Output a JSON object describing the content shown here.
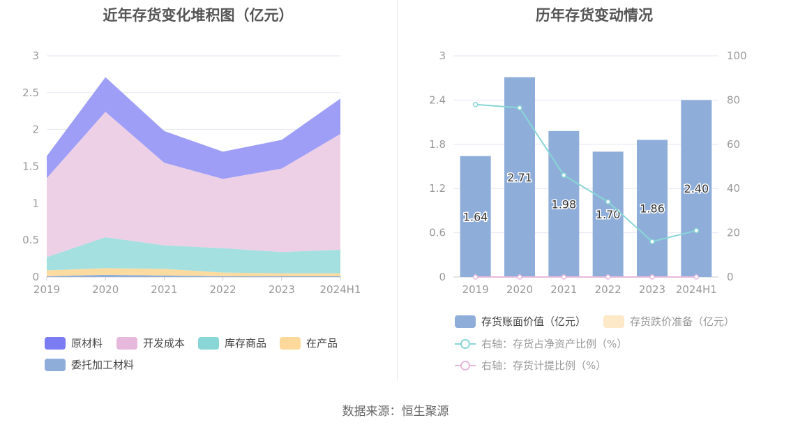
{
  "footer": {
    "source_label": "数据来源：恒生聚源"
  },
  "chart_data": [
    {
      "type": "area",
      "stacked": true,
      "title": "近年存货变化堆积图（亿元）",
      "x": [
        "2019",
        "2020",
        "2021",
        "2022",
        "2023",
        "2024H1"
      ],
      "ylim": [
        0,
        3
      ],
      "yticks": [
        0,
        0.5,
        1,
        1.5,
        2,
        2.5,
        3
      ],
      "ytick_labels": [
        "0",
        "0.5",
        "1",
        "1.5",
        "2",
        "2.5",
        "3"
      ],
      "grid": true,
      "legend_position": "bottom",
      "series": [
        {
          "name": "委托加工材料",
          "color": "#8eaed9",
          "values": [
            0.01,
            0.03,
            0.02,
            0.01,
            0.01,
            0.01
          ]
        },
        {
          "name": "在产品",
          "color": "#fcdba0",
          "values": [
            0.08,
            0.09,
            0.09,
            0.05,
            0.04,
            0.04
          ]
        },
        {
          "name": "库存商品",
          "color": "#a5e0e0",
          "values": [
            0.18,
            0.42,
            0.32,
            0.33,
            0.29,
            0.32
          ]
        },
        {
          "name": "开发成本",
          "color": "#edd0e6",
          "values": [
            1.07,
            1.7,
            1.12,
            0.94,
            1.13,
            1.57
          ]
        },
        {
          "name": "原材料",
          "color": "#9e9ef7",
          "values": [
            0.3,
            0.47,
            0.43,
            0.37,
            0.39,
            0.48
          ]
        }
      ],
      "legend_order": [
        {
          "name": "原材料",
          "color": "#7b7bf2"
        },
        {
          "name": "开发成本",
          "color": "#e6b9dc"
        },
        {
          "name": "库存商品",
          "color": "#88d6d6"
        },
        {
          "name": "在产品",
          "color": "#fcd89a"
        },
        {
          "name": "委托加工材料",
          "color": "#8eaed9"
        }
      ]
    },
    {
      "type": "bar",
      "title": "历年存货变动情况",
      "categories": [
        "2019",
        "2020",
        "2021",
        "2022",
        "2023",
        "2024H1"
      ],
      "ylim_left": [
        0,
        3
      ],
      "yticks_left": [
        "0",
        "0.6",
        "1.2",
        "1.8",
        "2.4",
        "3"
      ],
      "ylim_right": [
        0,
        100
      ],
      "yticks_right": [
        "0",
        "20",
        "40",
        "60",
        "80",
        "100"
      ],
      "grid": true,
      "legend_position": "bottom",
      "series": [
        {
          "name": "存货账面价值（亿元）",
          "type": "bar",
          "axis": "left",
          "color": "#8eaed9",
          "values": [
            1.64,
            2.71,
            1.98,
            1.7,
            1.86,
            2.4
          ],
          "labels": [
            "1.64",
            "2.71",
            "1.98",
            "1.70",
            "1.86",
            "2.40"
          ]
        },
        {
          "name": "存货跌价准备（亿元）",
          "type": "bar",
          "axis": "left",
          "color": "#fde8c8",
          "values": [
            0,
            0,
            0,
            0,
            0,
            0
          ]
        },
        {
          "name": "右轴：存货占净资产比例（%）",
          "type": "line",
          "axis": "right",
          "color": "#88d6d6",
          "values": [
            78,
            76.5,
            46,
            34,
            16,
            21
          ]
        },
        {
          "name": "右轴：存货计提比例（%）",
          "type": "line",
          "axis": "right",
          "color": "#e6b9dc",
          "values": [
            0,
            0,
            0,
            0,
            0,
            0
          ]
        }
      ]
    }
  ]
}
